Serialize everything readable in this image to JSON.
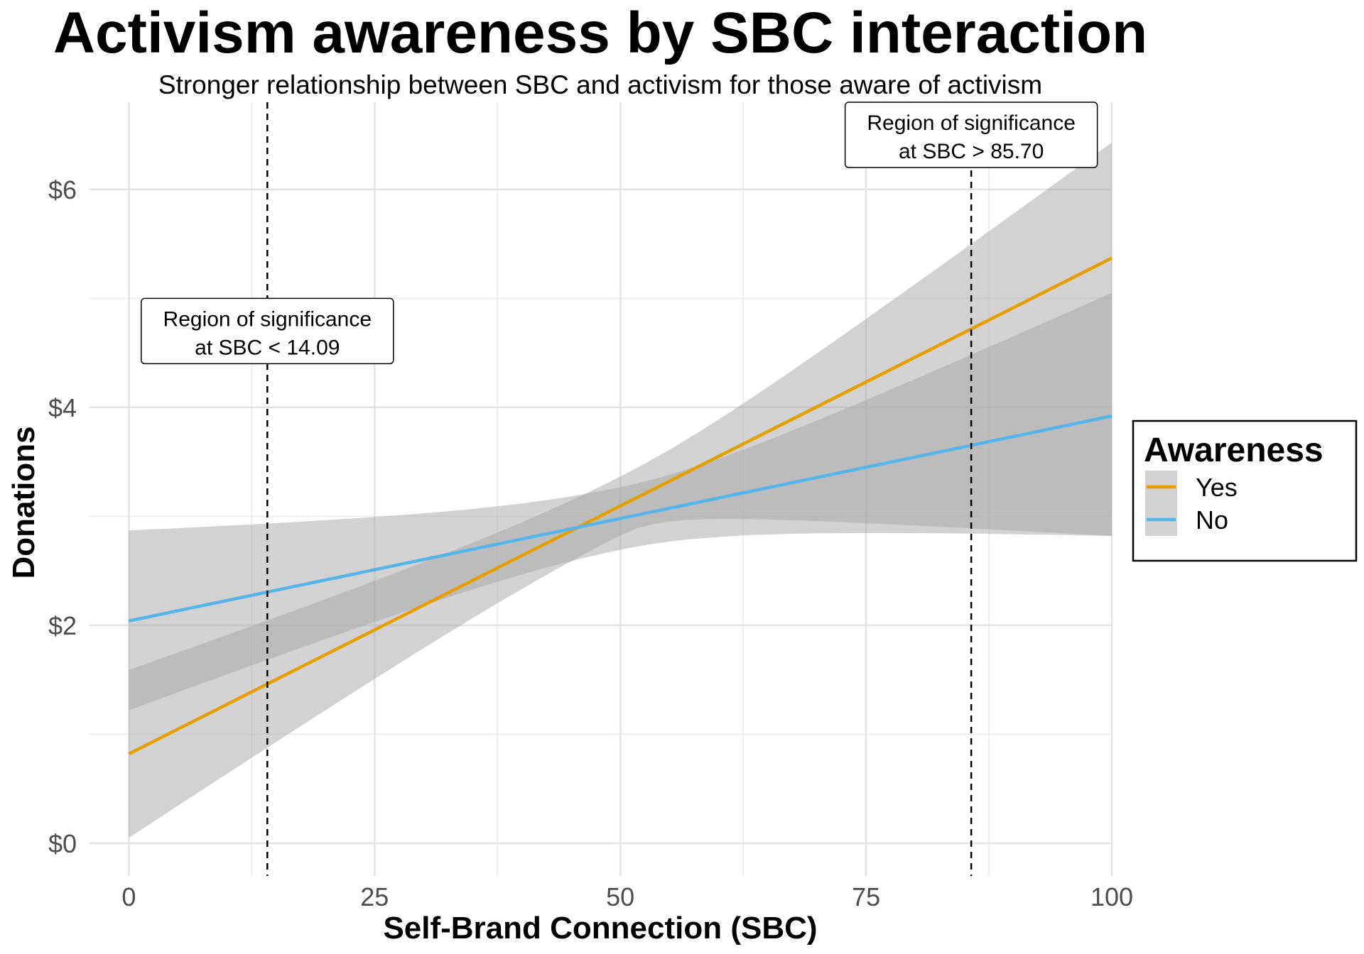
{
  "chart_data": {
    "type": "line",
    "title": "Activism awareness by SBC interaction",
    "subtitle": "Stronger relationship between SBC and activism for those aware of activism",
    "xlabel": "Self-Brand Connection (SBC)",
    "ylabel": "Donations",
    "xlim": [
      -4,
      100
    ],
    "ylim": [
      -0.3,
      6.8
    ],
    "x_ticks": [
      0,
      25,
      50,
      75,
      100
    ],
    "x_tick_labels": [
      "0",
      "25",
      "50",
      "75",
      "100"
    ],
    "y_ticks": [
      0,
      2,
      4,
      6
    ],
    "y_tick_labels": [
      "$0",
      "$2",
      "$4",
      "$6"
    ],
    "grid": true,
    "series": [
      {
        "name": "Yes",
        "color": "#E69F00",
        "x": [
          0,
          100
        ],
        "y": [
          0.82,
          5.37
        ],
        "ci_lower": [
          0.05,
          2.82
        ],
        "ci_upper": [
          1.59,
          6.43
        ]
      },
      {
        "name": "No",
        "color": "#56B4E9",
        "x": [
          0,
          100
        ],
        "y": [
          2.04,
          3.92
        ],
        "ci_lower": [
          1.22,
          2.82
        ],
        "ci_upper": [
          2.87,
          5.05
        ]
      }
    ],
    "vlines": [
      {
        "x": 14.09,
        "label_line1": "Region of significance",
        "label_line2": "at SBC < 14.09",
        "label_y": 4.7
      },
      {
        "x": 85.7,
        "label_line1": "Region of significance",
        "label_line2": "at SBC > 85.70",
        "label_y": 6.5
      }
    ],
    "legend": {
      "title": "Awareness",
      "position": "right"
    },
    "ribbon_color": "#a6a6a6"
  }
}
